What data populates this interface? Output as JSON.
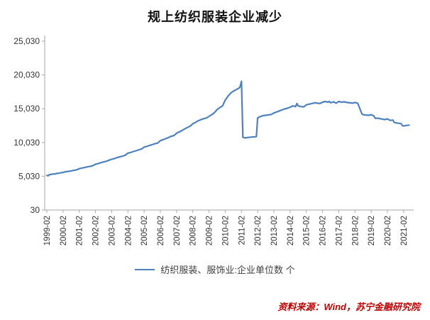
{
  "title": "规上纺织服装企业减少",
  "legend": {
    "label": "纺织服装、服饰业:企业单位数 个",
    "line_color": "#4f81bd"
  },
  "source": "资料来源：Wind，苏宁金融研究院",
  "source_color": "#c00000",
  "chart_data": {
    "type": "line",
    "title": "规上纺织服装企业减少",
    "series_name": "纺织服装、服饰业:企业单位数 个",
    "unit": "个",
    "line_color": "#4f81bd",
    "axis_color": "#a6a6a6",
    "label_color": "#333333",
    "grid": false,
    "legend_position": "bottom",
    "ylim": [
      30,
      25030
    ],
    "y_ticks": [
      30,
      5030,
      10030,
      15030,
      20030,
      25030
    ],
    "xlim": [
      1998.95,
      2021.7
    ],
    "x_tick_labels": [
      "1999-02",
      "2000-02",
      "2001-02",
      "2002-02",
      "2003-02",
      "2004-02",
      "2005-02",
      "2006-02",
      "2007-02",
      "2008-02",
      "2009-02",
      "2010-02",
      "2011-02",
      "2012-02",
      "2013-02",
      "2014-02",
      "2015-02",
      "2016-02",
      "2017-02",
      "2018-02",
      "2019-02",
      "2020-02",
      "2021-02"
    ],
    "points": [
      [
        1999.08,
        5150
      ],
      [
        1999.17,
        5100
      ],
      [
        1999.25,
        5300
      ],
      [
        1999.33,
        5280
      ],
      [
        1999.42,
        5350
      ],
      [
        1999.5,
        5380
      ],
      [
        1999.58,
        5350
      ],
      [
        1999.67,
        5450
      ],
      [
        1999.75,
        5430
      ],
      [
        1999.83,
        5500
      ],
      [
        1999.92,
        5520
      ],
      [
        2000.08,
        5600
      ],
      [
        2000.25,
        5700
      ],
      [
        2000.42,
        5750
      ],
      [
        2000.58,
        5820
      ],
      [
        2000.75,
        5900
      ],
      [
        2000.92,
        5980
      ],
      [
        2001.08,
        6150
      ],
      [
        2001.25,
        6250
      ],
      [
        2001.42,
        6320
      ],
      [
        2001.58,
        6420
      ],
      [
        2001.75,
        6500
      ],
      [
        2001.92,
        6600
      ],
      [
        2002.08,
        6800
      ],
      [
        2002.25,
        6900
      ],
      [
        2002.42,
        7050
      ],
      [
        2002.58,
        7150
      ],
      [
        2002.75,
        7250
      ],
      [
        2002.92,
        7400
      ],
      [
        2003.08,
        7550
      ],
      [
        2003.25,
        7650
      ],
      [
        2003.42,
        7800
      ],
      [
        2003.58,
        7900
      ],
      [
        2003.75,
        8000
      ],
      [
        2003.92,
        8150
      ],
      [
        2004.08,
        8450
      ],
      [
        2004.25,
        8550
      ],
      [
        2004.42,
        8700
      ],
      [
        2004.58,
        8800
      ],
      [
        2004.75,
        8950
      ],
      [
        2004.92,
        9050
      ],
      [
        2005.08,
        9350
      ],
      [
        2005.25,
        9450
      ],
      [
        2005.42,
        9600
      ],
      [
        2005.58,
        9700
      ],
      [
        2005.75,
        9850
      ],
      [
        2005.92,
        9950
      ],
      [
        2006.08,
        10300
      ],
      [
        2006.25,
        10450
      ],
      [
        2006.42,
        10600
      ],
      [
        2006.58,
        10750
      ],
      [
        2006.75,
        10950
      ],
      [
        2006.92,
        11050
      ],
      [
        2007.08,
        11400
      ],
      [
        2007.25,
        11600
      ],
      [
        2007.42,
        11800
      ],
      [
        2007.58,
        12050
      ],
      [
        2007.75,
        12250
      ],
      [
        2007.92,
        12450
      ],
      [
        2008.08,
        12800
      ],
      [
        2008.25,
        13000
      ],
      [
        2008.42,
        13250
      ],
      [
        2008.58,
        13400
      ],
      [
        2008.75,
        13550
      ],
      [
        2008.92,
        13650
      ],
      [
        2009.08,
        13900
      ],
      [
        2009.25,
        14150
      ],
      [
        2009.42,
        14450
      ],
      [
        2009.58,
        14900
      ],
      [
        2009.75,
        15200
      ],
      [
        2009.92,
        15450
      ],
      [
        2010.08,
        16300
      ],
      [
        2010.17,
        16600
      ],
      [
        2010.25,
        16900
      ],
      [
        2010.33,
        17100
      ],
      [
        2010.42,
        17350
      ],
      [
        2010.5,
        17500
      ],
      [
        2010.58,
        17600
      ],
      [
        2010.67,
        17750
      ],
      [
        2010.75,
        17850
      ],
      [
        2010.83,
        17950
      ],
      [
        2010.92,
        18050
      ],
      [
        2011.0,
        18300
      ],
      [
        2011.08,
        19100
      ],
      [
        2011.17,
        10800
      ],
      [
        2011.25,
        10750
      ],
      [
        2011.33,
        10700
      ],
      [
        2011.42,
        10750
      ],
      [
        2011.5,
        10780
      ],
      [
        2011.58,
        10800
      ],
      [
        2011.67,
        10820
      ],
      [
        2011.75,
        10850
      ],
      [
        2011.83,
        10850
      ],
      [
        2011.92,
        10870
      ],
      [
        2012.0,
        10900
      ],
      [
        2012.08,
        13650
      ],
      [
        2012.17,
        13800
      ],
      [
        2012.25,
        13850
      ],
      [
        2012.33,
        13950
      ],
      [
        2012.42,
        14000
      ],
      [
        2012.58,
        14050
      ],
      [
        2012.75,
        14120
      ],
      [
        2012.92,
        14180
      ],
      [
        2013.08,
        14400
      ],
      [
        2013.25,
        14550
      ],
      [
        2013.42,
        14700
      ],
      [
        2013.58,
        14850
      ],
      [
        2013.75,
        15000
      ],
      [
        2013.92,
        15100
      ],
      [
        2014.08,
        15250
      ],
      [
        2014.25,
        15450
      ],
      [
        2014.42,
        15350
      ],
      [
        2014.5,
        15800
      ],
      [
        2014.58,
        15450
      ],
      [
        2014.75,
        15350
      ],
      [
        2014.92,
        15300
      ],
      [
        2015.08,
        15600
      ],
      [
        2015.25,
        15700
      ],
      [
        2015.42,
        15800
      ],
      [
        2015.58,
        15900
      ],
      [
        2015.75,
        15850
      ],
      [
        2015.92,
        15800
      ],
      [
        2016.08,
        16000
      ],
      [
        2016.25,
        16100
      ],
      [
        2016.42,
        16000
      ],
      [
        2016.5,
        16100
      ],
      [
        2016.58,
        15900
      ],
      [
        2016.75,
        16050
      ],
      [
        2016.92,
        15850
      ],
      [
        2017.08,
        16100
      ],
      [
        2017.25,
        16000
      ],
      [
        2017.42,
        16050
      ],
      [
        2017.58,
        15950
      ],
      [
        2017.75,
        15900
      ],
      [
        2017.92,
        15850
      ],
      [
        2018.08,
        15950
      ],
      [
        2018.25,
        15850
      ],
      [
        2018.42,
        14800
      ],
      [
        2018.5,
        14300
      ],
      [
        2018.58,
        14150
      ],
      [
        2018.75,
        14100
      ],
      [
        2018.92,
        14050
      ],
      [
        2019.08,
        14150
      ],
      [
        2019.25,
        13950
      ],
      [
        2019.33,
        13600
      ],
      [
        2019.5,
        13620
      ],
      [
        2019.58,
        13580
      ],
      [
        2019.75,
        13500
      ],
      [
        2019.92,
        13420
      ],
      [
        2020.08,
        13520
      ],
      [
        2020.25,
        13300
      ],
      [
        2020.42,
        13350
      ],
      [
        2020.5,
        13000
      ],
      [
        2020.58,
        12950
      ],
      [
        2020.75,
        12880
      ],
      [
        2020.92,
        12820
      ],
      [
        2021.0,
        12520
      ],
      [
        2021.08,
        12480
      ],
      [
        2021.25,
        12550
      ],
      [
        2021.42,
        12600
      ]
    ]
  }
}
